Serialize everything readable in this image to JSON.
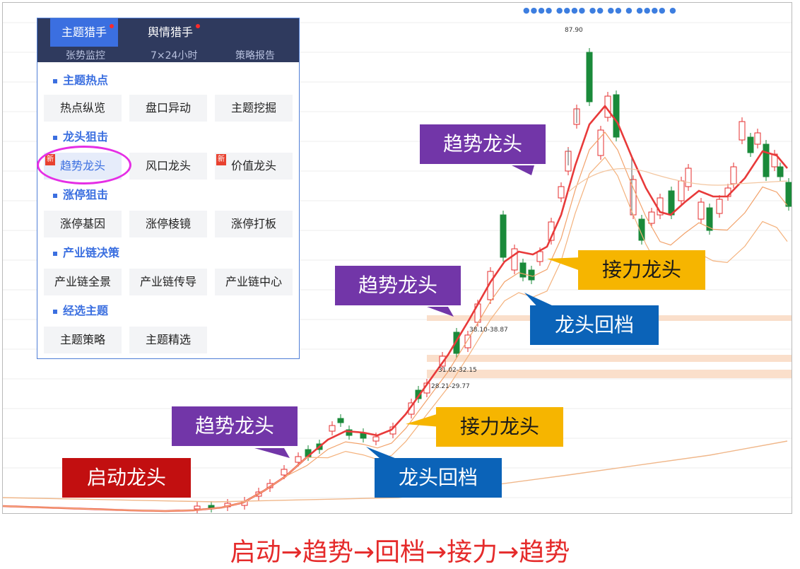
{
  "menu": {
    "tabs": [
      "主题猎手",
      "舆情猎手"
    ],
    "subtabs": [
      "张势监控",
      "7×24小时",
      "策略报告"
    ],
    "sections": [
      {
        "title": "主题热点",
        "items": [
          "热点纵览",
          "盘口异动",
          "主题挖掘"
        ]
      },
      {
        "title": "龙头狙击",
        "items": [
          "趋势龙头",
          "风口龙头",
          "价值龙头"
        ]
      },
      {
        "title": "涨停狙击",
        "items": [
          "涨停基因",
          "涨停棱镜",
          "涨停打板"
        ]
      },
      {
        "title": "产业链决策",
        "items": [
          "产业链全景",
          "产业链传导",
          "产业链中心"
        ]
      },
      {
        "title": "经选主题",
        "items": [
          "主题策略",
          "主题精选"
        ]
      }
    ],
    "new_tag": "新",
    "selected_item": "趋势龙头"
  },
  "chart": {
    "top_dots": "●●●● ●●●● ●● ●● ● ●●●● ●",
    "price_labels": {
      "high": "87.90",
      "range1": "38.10-38.87",
      "range2": "31.02-32.15",
      "range3": "28.21-29.77"
    },
    "annotations": {
      "start": "启动龙头",
      "trend1": "趋势龙头",
      "pullback1": "龙头回档",
      "relay1": "接力龙头",
      "trend2": "趋势龙头",
      "pullback2": "龙头回档",
      "relay2": "接力龙头",
      "trend3": "趋势龙头"
    }
  },
  "caption": "启动→趋势→回档→接力→趋势",
  "colors": {
    "up": "#e62e2e",
    "down": "#1a8a3a",
    "ma": "#e83a3a",
    "accent": "#3b6fe0"
  }
}
